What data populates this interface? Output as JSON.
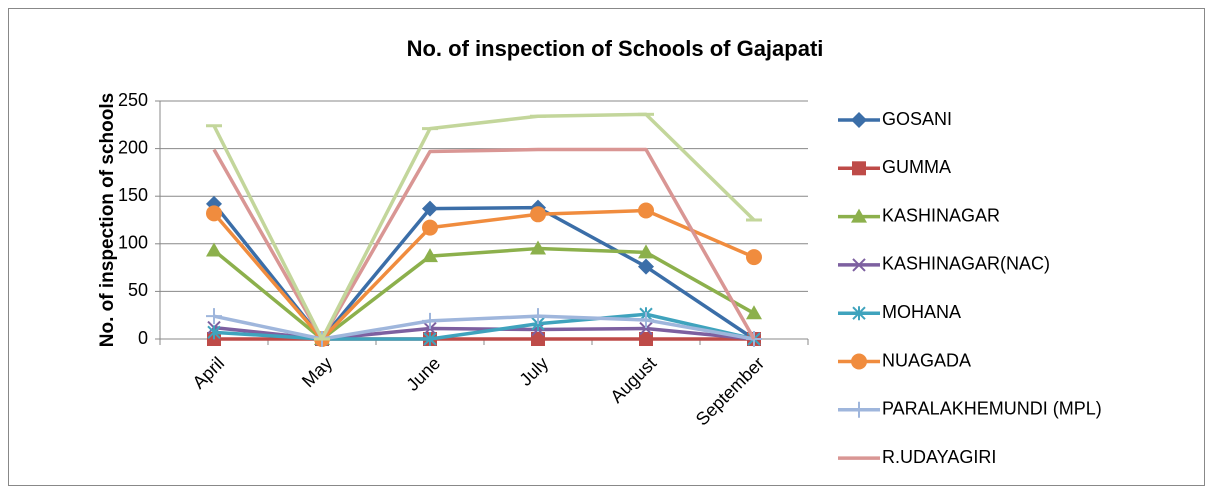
{
  "chart_data": {
    "type": "line",
    "title": "No. of inspection of Schools of Gajapati",
    "y_label": "No. of inspection of schools",
    "categories": [
      "April",
      "May",
      "June",
      "July",
      "August",
      "September"
    ],
    "ylim": [
      0,
      250
    ],
    "yticks": [
      0,
      50,
      100,
      150,
      200,
      250
    ],
    "grid": true,
    "legend": "right",
    "series": [
      {
        "name": "GOSANI",
        "color": "#3b6ea8",
        "marker": "diamond",
        "values": [
          142,
          0,
          137,
          138,
          76,
          0
        ]
      },
      {
        "name": "GUMMA",
        "color": "#be4b48",
        "marker": "square",
        "values": [
          0,
          0,
          0,
          0,
          0,
          0
        ]
      },
      {
        "name": "KASHINAGAR",
        "color": "#8cb04c",
        "marker": "triangle",
        "values": [
          93,
          0,
          87,
          95,
          91,
          27
        ]
      },
      {
        "name": "KASHINAGAR(NAC)",
        "color": "#7d60a0",
        "marker": "x",
        "values": [
          12,
          0,
          11,
          10,
          11,
          0
        ]
      },
      {
        "name": "MOHANA",
        "color": "#3fa3bd",
        "marker": "star",
        "values": [
          7,
          0,
          0,
          16,
          26,
          0
        ]
      },
      {
        "name": "NUAGADA",
        "color": "#f08c3e",
        "marker": "circle",
        "values": [
          132,
          0,
          117,
          131,
          135,
          86
        ]
      },
      {
        "name": "PARALAKHEMUNDI (MPL)",
        "color": "#9fb6dc",
        "marker": "plus",
        "values": [
          24,
          0,
          19,
          24,
          20,
          0
        ]
      },
      {
        "name": "R.UDAYAGIRI",
        "color": "#d99694",
        "marker": "none",
        "values": [
          199,
          0,
          197,
          199,
          199,
          0
        ]
      },
      {
        "color": "#c3d69b",
        "marker": "dash",
        "values": [
          224,
          0,
          221,
          234,
          236,
          125
        ]
      }
    ]
  }
}
